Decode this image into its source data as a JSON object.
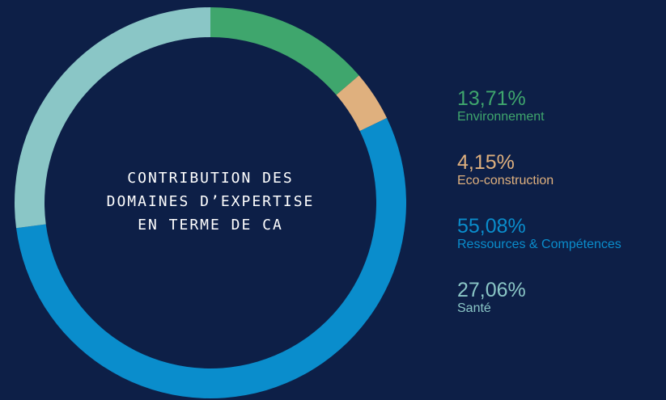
{
  "chart_data": {
    "type": "donut",
    "title": "CONTRIBUTION DES DOMAINES D’EXPERTISE EN TERME DE CA",
    "categories": [
      "Environnement",
      "Eco-construction",
      "Ressources & Compétences",
      "Santé"
    ],
    "values": [
      13.71,
      4.15,
      55.08,
      27.06
    ],
    "value_labels": [
      "13,71%",
      "4,15%",
      "55,08%",
      "27,06%"
    ],
    "colors": [
      "#3fa66d",
      "#dfb07e",
      "#0a8dcc",
      "#8ac6c6"
    ]
  }
}
